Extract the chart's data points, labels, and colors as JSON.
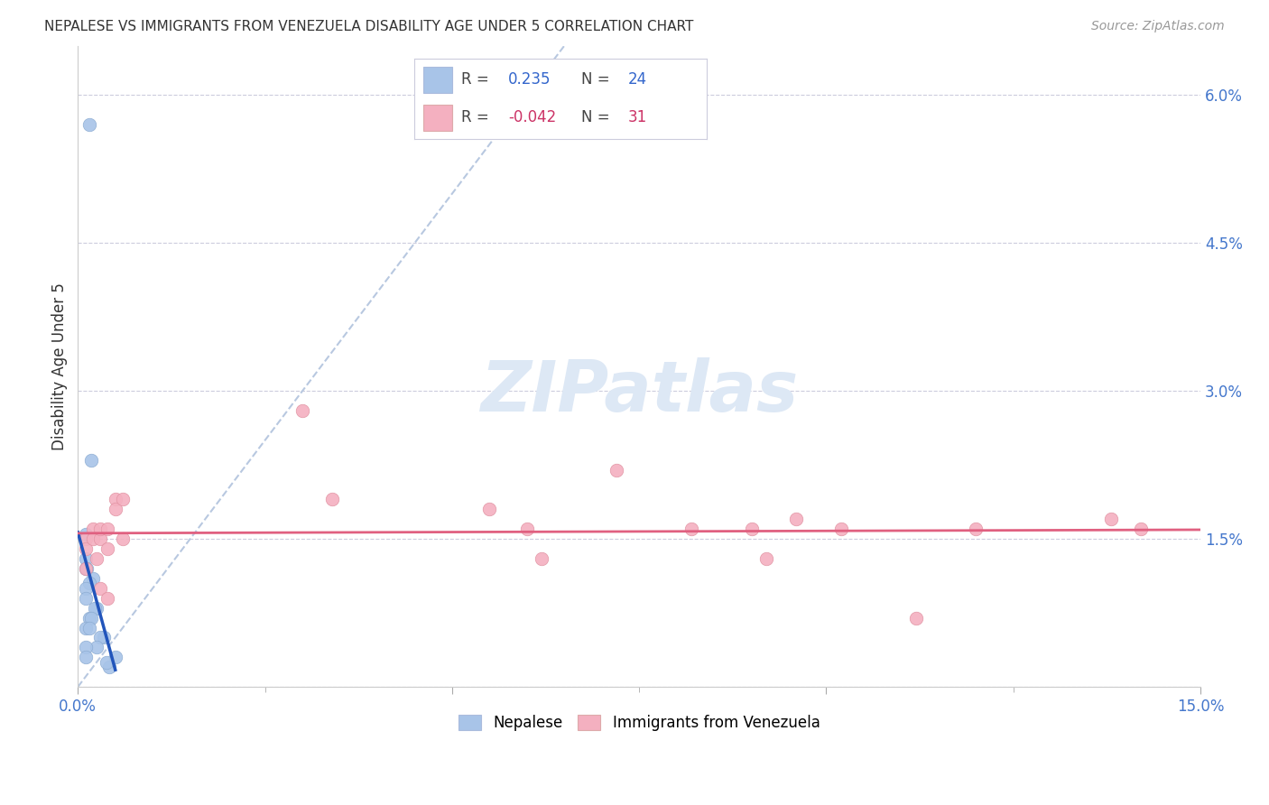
{
  "title": "NEPALESE VS IMMIGRANTS FROM VENEZUELA DISABILITY AGE UNDER 5 CORRELATION CHART",
  "source": "Source: ZipAtlas.com",
  "ylabel": "Disability Age Under 5",
  "xlim": [
    0.0,
    0.15
  ],
  "ylim": [
    0.0,
    0.065
  ],
  "nepalese_R": 0.235,
  "nepalese_N": 24,
  "venezuela_R": -0.042,
  "venezuela_N": 31,
  "nepalese_color": "#a8c4e8",
  "venezuela_color": "#f4b0c0",
  "nepalese_line_color": "#2255bb",
  "venezuela_line_color": "#e06080",
  "diagonal_color": "#b8c8e0",
  "watermark_color": "#dde8f5",
  "nepalese_x": [
    0.0015,
    0.0018,
    0.001,
    0.001,
    0.001,
    0.0012,
    0.002,
    0.0015,
    0.001,
    0.001,
    0.0025,
    0.0022,
    0.0015,
    0.0018,
    0.001,
    0.0015,
    0.0035,
    0.003,
    0.0025,
    0.001,
    0.001,
    0.005,
    0.0042,
    0.0038
  ],
  "nepalese_y": [
    0.057,
    0.023,
    0.0155,
    0.013,
    0.012,
    0.012,
    0.011,
    0.0105,
    0.01,
    0.009,
    0.008,
    0.008,
    0.007,
    0.007,
    0.006,
    0.006,
    0.005,
    0.005,
    0.004,
    0.004,
    0.003,
    0.003,
    0.002,
    0.0025
  ],
  "venezuela_x": [
    0.001,
    0.001,
    0.001,
    0.002,
    0.002,
    0.003,
    0.003,
    0.0025,
    0.003,
    0.004,
    0.004,
    0.005,
    0.005,
    0.006,
    0.006,
    0.004,
    0.03,
    0.034,
    0.055,
    0.06,
    0.062,
    0.072,
    0.082,
    0.09,
    0.092,
    0.096,
    0.102,
    0.112,
    0.12,
    0.138,
    0.142
  ],
  "venezuela_y": [
    0.015,
    0.014,
    0.012,
    0.016,
    0.015,
    0.015,
    0.016,
    0.013,
    0.01,
    0.016,
    0.014,
    0.019,
    0.018,
    0.019,
    0.015,
    0.009,
    0.028,
    0.019,
    0.018,
    0.016,
    0.013,
    0.022,
    0.016,
    0.016,
    0.013,
    0.017,
    0.016,
    0.007,
    0.016,
    0.017,
    0.016
  ]
}
